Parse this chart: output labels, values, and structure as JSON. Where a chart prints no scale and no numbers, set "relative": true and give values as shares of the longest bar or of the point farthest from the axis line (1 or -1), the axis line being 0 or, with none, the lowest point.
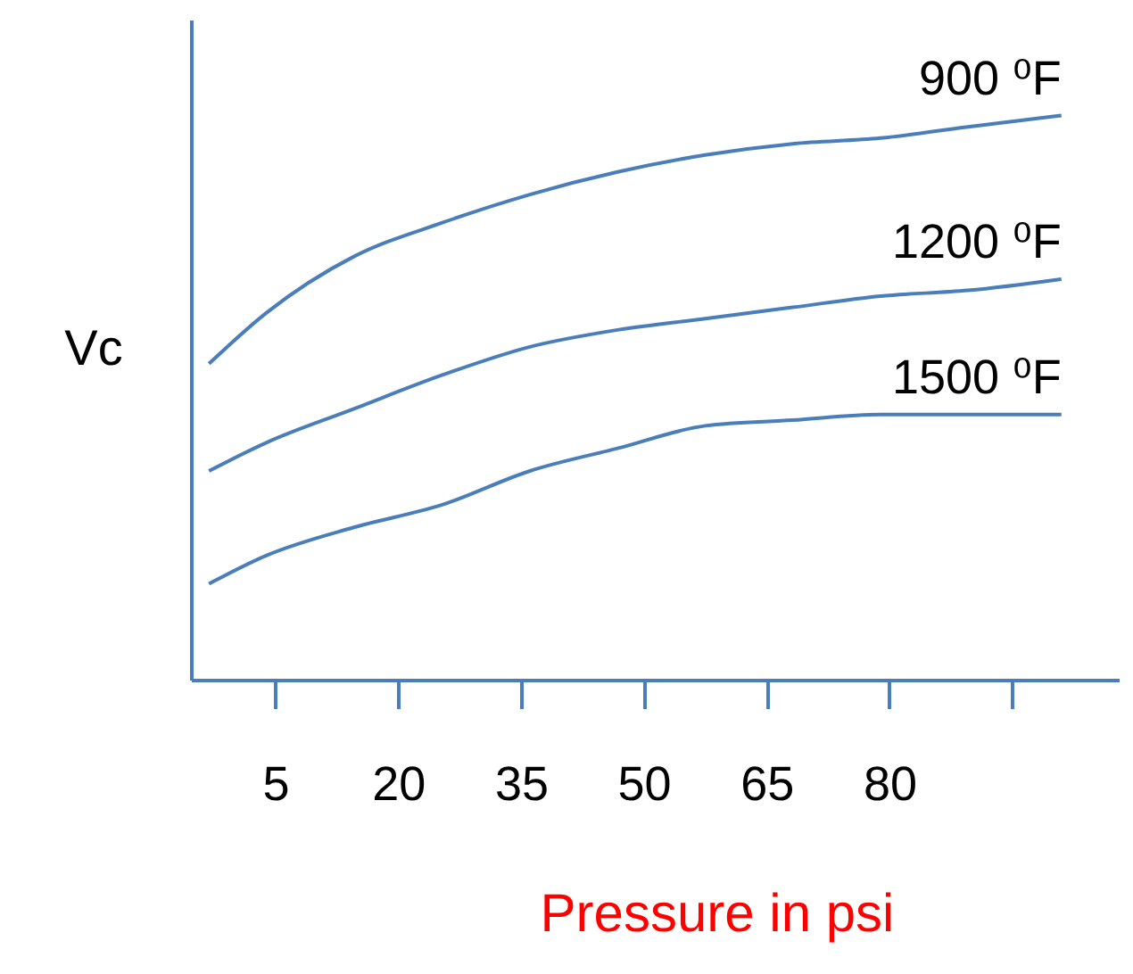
{
  "chart_data": {
    "type": "line",
    "relative": true,
    "xlabel": "Pressure in psi",
    "ylabel": "Vc",
    "xlim": [
      -5.3,
      108
    ],
    "xticks": [
      5,
      20,
      35,
      50,
      65,
      80,
      {
        "value": 95,
        "label": null
      }
    ],
    "x": [
      -3.1,
      3.9,
      14.6,
      25.4,
      36.1,
      46.8,
      57.5,
      68.2,
      78.9,
      89.6,
      101
    ],
    "series": [
      {
        "name": "900 ⁰F",
        "color": "#4a7ebb",
        "values": [
          0.56,
          0.65,
          0.75,
          0.81,
          0.86,
          0.9,
          0.93,
          0.95,
          0.96,
          0.98,
          1
        ]
      },
      {
        "name": "1200 ⁰F",
        "color": "#4a7ebb",
        "values": [
          0.37,
          0.42,
          0.48,
          0.54,
          0.59,
          0.62,
          0.64,
          0.66,
          0.68,
          0.69,
          0.71
        ]
      },
      {
        "name": "1500 ⁰F",
        "color": "#4a7ebb",
        "values": [
          0.17,
          0.22,
          0.27,
          0.31,
          0.37,
          0.41,
          0.45,
          0.46,
          0.47,
          0.47,
          0.47
        ]
      }
    ],
    "grid": false,
    "marker": "none",
    "line_style": "solid"
  }
}
